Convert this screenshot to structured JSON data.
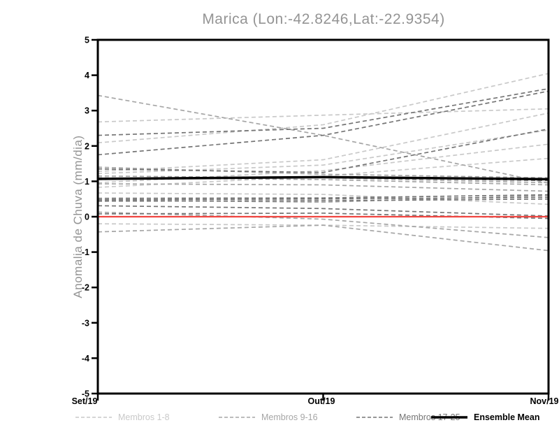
{
  "title": "Marica (Lon:-42.8246,Lat:-22.9354)",
  "colors": {
    "title_text": "#949494",
    "axis": "#000000",
    "tick_labels": "#000000",
    "members_1_8": "#c9c9c9",
    "members_9_16": "#a6a6a6",
    "members_17_25": "#757575",
    "ensemble_mean": "#000000",
    "zero_line": "#f04540",
    "background": "#ffffff"
  },
  "chart_data": {
    "type": "line",
    "title": "Marica (Lon:-42.8246,Lat:-22.9354)",
    "xlabel": "",
    "ylabel": "Anomalia de Chuva (mm/dia)",
    "x_categories": [
      "Set/19",
      "Out/19",
      "Nov/19"
    ],
    "ylim": [
      -5,
      5
    ],
    "yticks": [
      5,
      4,
      3,
      2,
      1,
      0,
      -1,
      -2,
      -3,
      -4,
      -5
    ],
    "grid": false,
    "legend_position": "bottom",
    "line_style_members": "dashed",
    "groups": [
      {
        "name": "Membros 1-8",
        "color": "#c9c9c9",
        "style": "dashed",
        "width": 1.7,
        "series": [
          {
            "name": "membro",
            "values": [
              2.09,
              2.6,
              4.05
            ]
          },
          {
            "name": "membro",
            "values": [
              2.68,
              2.87,
              3.05
            ]
          },
          {
            "name": "membro",
            "values": [
              1.28,
              1.61,
              2.93
            ]
          },
          {
            "name": "membro",
            "values": [
              1.22,
              1.46,
              2.45
            ]
          },
          {
            "name": "membro",
            "values": [
              0.96,
              1.3,
              2.05
            ]
          },
          {
            "name": "membro",
            "values": [
              0.83,
              1.15,
              1.65
            ]
          },
          {
            "name": "membro",
            "values": [
              0.67,
              0.63,
              0.35
            ]
          },
          {
            "name": "membro",
            "values": [
              -0.2,
              -0.24,
              -0.33
            ]
          }
        ]
      },
      {
        "name": "Membros 9-16",
        "color": "#a6a6a6",
        "style": "dashed",
        "width": 1.7,
        "series": [
          {
            "name": "membro",
            "values": [
              3.43,
              2.3,
              0.95
            ]
          },
          {
            "name": "membro",
            "values": [
              1.4,
              1.2,
              1.1
            ]
          },
          {
            "name": "membro",
            "values": [
              1.15,
              1.1,
              0.96
            ]
          },
          {
            "name": "membro",
            "values": [
              1.1,
              1.05,
              0.9
            ]
          },
          {
            "name": "membro",
            "values": [
              0.93,
              0.9,
              0.72
            ]
          },
          {
            "name": "membro",
            "values": [
              0.47,
              0.41,
              0.6
            ]
          },
          {
            "name": "membro",
            "values": [
              0.13,
              -0.07,
              -0.59
            ]
          },
          {
            "name": "membro",
            "values": [
              -0.43,
              -0.24,
              -0.96
            ]
          }
        ]
      },
      {
        "name": "Membros 17-25",
        "color": "#757575",
        "style": "dashed",
        "width": 1.7,
        "series": [
          {
            "name": "membro",
            "values": [
              2.3,
              2.5,
              3.62
            ]
          },
          {
            "name": "membro",
            "values": [
              1.75,
              2.3,
              3.55
            ]
          },
          {
            "name": "membro",
            "values": [
              1.35,
              1.25,
              2.48
            ]
          },
          {
            "name": "membro",
            "values": [
              1.05,
              1.12,
              1.02
            ]
          },
          {
            "name": "membro",
            "values": [
              0.52,
              0.53,
              0.62
            ]
          },
          {
            "name": "membro",
            "values": [
              0.48,
              0.5,
              0.55
            ]
          },
          {
            "name": "membro",
            "values": [
              0.44,
              0.45,
              0.5
            ]
          },
          {
            "name": "membro",
            "values": [
              0.31,
              0.23,
              0.02
            ]
          },
          {
            "name": "membro",
            "values": [
              0.08,
              0.1,
              -0.05
            ]
          }
        ]
      },
      {
        "name": "Ensemble Mean",
        "color": "#000000",
        "style": "solid",
        "width": 3.5,
        "series": [
          {
            "name": "ensemble-mean",
            "values": [
              1.07,
              1.12,
              1.06
            ]
          }
        ]
      }
    ],
    "reference_line": {
      "value": 0,
      "color": "#f04540",
      "width": 2.2
    }
  },
  "legend": {
    "items": [
      {
        "label": "Membros 1-8",
        "color": "#c9c9c9",
        "style": "dashed"
      },
      {
        "label": "Membros 9-16",
        "color": "#a6a6a6",
        "style": "dashed"
      },
      {
        "label": "Membros 17-25",
        "color": "#757575",
        "style": "dashed"
      },
      {
        "label": "Ensemble Mean",
        "color": "#000000",
        "style": "solid"
      }
    ]
  }
}
